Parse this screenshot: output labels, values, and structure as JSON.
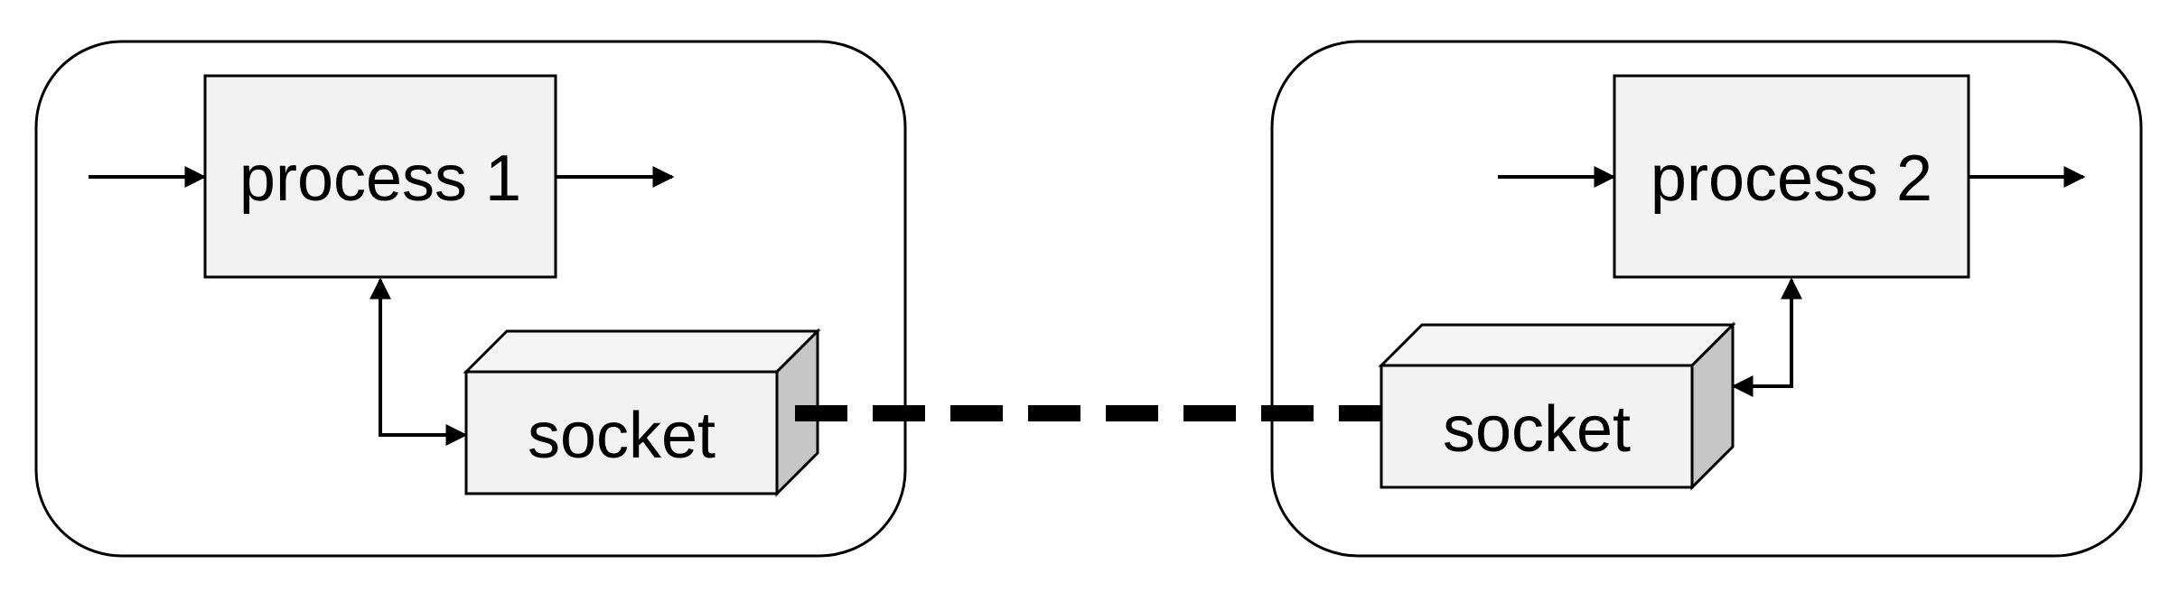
{
  "diagram": {
    "hosts": [
      {
        "process_label": "process 1",
        "socket_label": "socket"
      },
      {
        "process_label": "process 2",
        "socket_label": "socket"
      }
    ]
  },
  "colors": {
    "stroke": "#000000",
    "box_fill": "#f2f2f2",
    "socket_side_fill": "#c6c6c6",
    "socket_top_fill": "#f5f5f5",
    "background": "#ffffff"
  }
}
